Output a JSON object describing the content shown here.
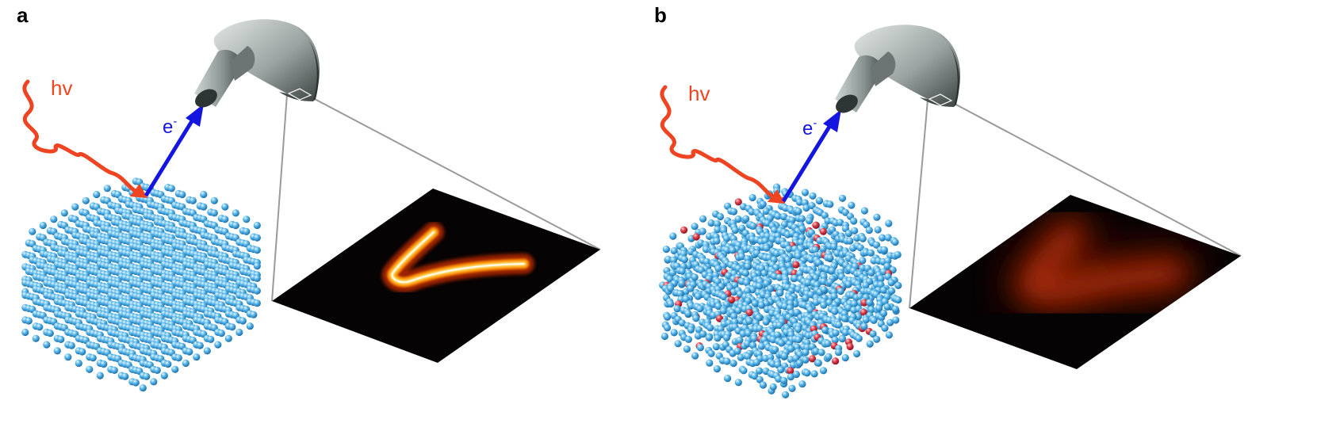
{
  "panels": [
    {
      "id": "a",
      "letter": "a",
      "photon_label": "hv",
      "electron_label": "e",
      "electron_charge": "-",
      "disorder": false
    },
    {
      "id": "b",
      "letter": "b",
      "photon_label": "hv",
      "electron_label": "e",
      "electron_charge": "-",
      "disorder": true
    }
  ],
  "colors": {
    "photon": "#ee4422",
    "electron_arrow": "#1515e0",
    "atom": "#5ab8ec",
    "impurity": "#dd3344",
    "analyzer": "#9fa8a6",
    "screen": "#050303",
    "sight_lines": "#9a9a9a"
  },
  "icons": {
    "photon": "wavy-arrow-icon",
    "electron": "straight-arrow-icon",
    "analyzer": "hemispherical-analyzer-icon"
  }
}
